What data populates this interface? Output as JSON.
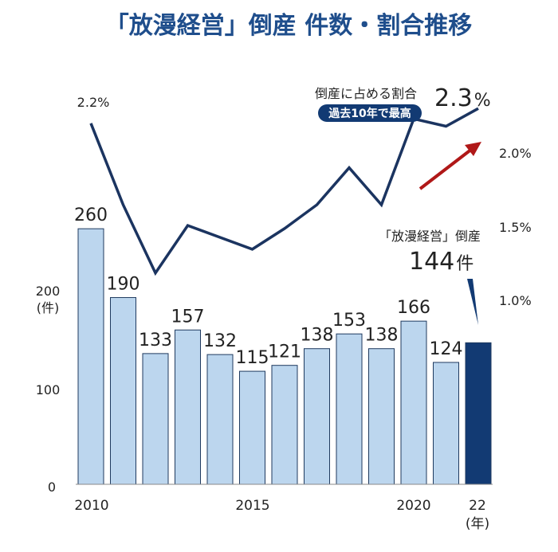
{
  "chart_data": {
    "type": "bar",
    "title": "「放漫経営」倒産 件数・割合推移",
    "categories": [
      "2010",
      "2011",
      "2012",
      "2013",
      "2014",
      "2015",
      "2016",
      "2017",
      "2018",
      "2019",
      "2020",
      "2021",
      "22"
    ],
    "x_tick_labels": [
      "2010",
      "2015",
      "2020",
      "22"
    ],
    "x_unit": "(年)",
    "series": [
      {
        "type": "bar",
        "values": [
          260,
          190,
          133,
          157,
          132,
          115,
          121,
          138,
          153,
          138,
          166,
          124,
          144
        ]
      },
      {
        "type": "line",
        "values": [
          2.2,
          1.65,
          1.19,
          1.51,
          1.43,
          1.35,
          1.49,
          1.65,
          1.9,
          1.65,
          2.23,
          2.18,
          2.3
        ]
      }
    ],
    "bar_labels": [
      "260",
      "190",
      "133",
      "157",
      "132",
      "115",
      "121",
      "138",
      "153",
      "138",
      "166",
      "124",
      ""
    ],
    "y_left": {
      "ticks": [
        "0",
        "100",
        "200"
      ],
      "unit": "(件)",
      "range": [
        0,
        300
      ]
    },
    "y_right": {
      "ticks": [
        "1.0%",
        "1.5%",
        "2.0%"
      ],
      "range": [
        0.5,
        2.75
      ]
    },
    "line_first_label": "2.2%",
    "annotation_rate": {
      "text": "倒産に占める割合",
      "value_big": "2.3",
      "value_small": "%",
      "badge": "過去10年で最高"
    },
    "annotation_count": {
      "text": "「放漫経営」倒産",
      "value_big": "144",
      "value_small": "件"
    },
    "grid": false,
    "colors": {
      "bar": "#bcd6ee",
      "bar_border": "#1f3a5f",
      "bar_highlight": "#123a73",
      "line": "#1b3460",
      "title": "#1f4e8c",
      "arrow": "#b01818",
      "badge": "#123a73"
    }
  }
}
